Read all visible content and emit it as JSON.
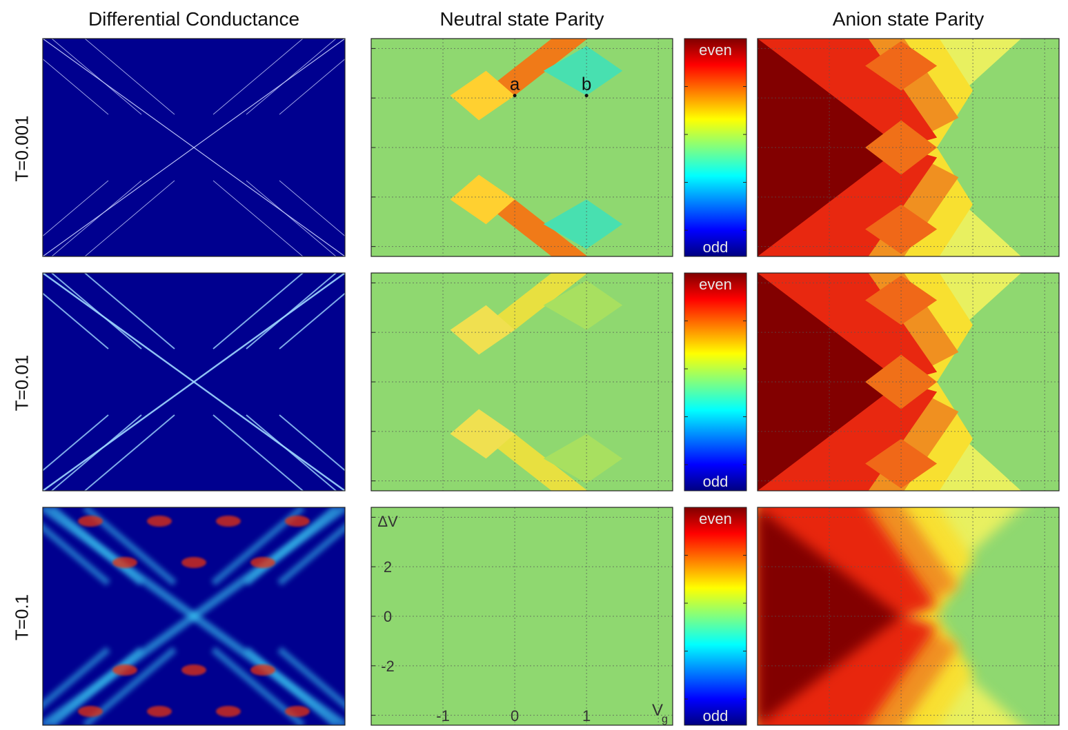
{
  "figure": {
    "column_titles": [
      "Differential Conductance",
      "Neutral state Parity",
      "Anion state Parity"
    ],
    "row_labels": [
      "T=0.001",
      "T=0.01",
      "T=0.1"
    ]
  },
  "chart_data": [
    {
      "type": "heatmap",
      "panel": "Differential Conductance",
      "rows": [
        "T=0.001",
        "T=0.01",
        "T=0.1"
      ],
      "colormap": "jet",
      "description_values": {
        "background": "low conductance (dark blue)",
        "features": "diamond (Coulomb blockade) lines crossing at center; lines sharpen as T decreases"
      },
      "xlim": [
        -2,
        2
      ],
      "ylim": [
        -4.4,
        4.4
      ]
    },
    {
      "type": "heatmap",
      "panel": "Neutral state Parity",
      "rows": [
        "T=0.001",
        "T=0.01",
        "T=0.1"
      ],
      "colormap": "jet",
      "colorbar": {
        "top_label": "even",
        "bottom_label": "odd"
      },
      "xlabel": "V",
      "xlabel_sub": "g",
      "ylabel": "ΔV",
      "x_ticks": [
        "-1",
        "0",
        "1"
      ],
      "y_ticks": [
        "2",
        "0",
        "-2"
      ],
      "points": [
        {
          "label": "a",
          "x": 0,
          "y": 2.1
        },
        {
          "label": "b",
          "x": 1,
          "y": 2.1
        }
      ],
      "xlim": [
        -2,
        2.2
      ],
      "ylim": [
        -4.4,
        4.4
      ],
      "grid": true
    },
    {
      "type": "heatmap",
      "panel": "Anion state Parity",
      "rows": [
        "T=0.001",
        "T=0.01",
        "T=0.1"
      ],
      "colormap": "jet",
      "xlim": [
        -2,
        2.2
      ],
      "ylim": [
        -4.4,
        4.4
      ],
      "grid": true
    }
  ],
  "colors": {
    "deep_blue": "#00008f",
    "neutral_green": "#8fd870",
    "dark_red": "#820000",
    "red": "#e0100a",
    "orange": "#f06a10",
    "yellow": "#f0e000"
  }
}
